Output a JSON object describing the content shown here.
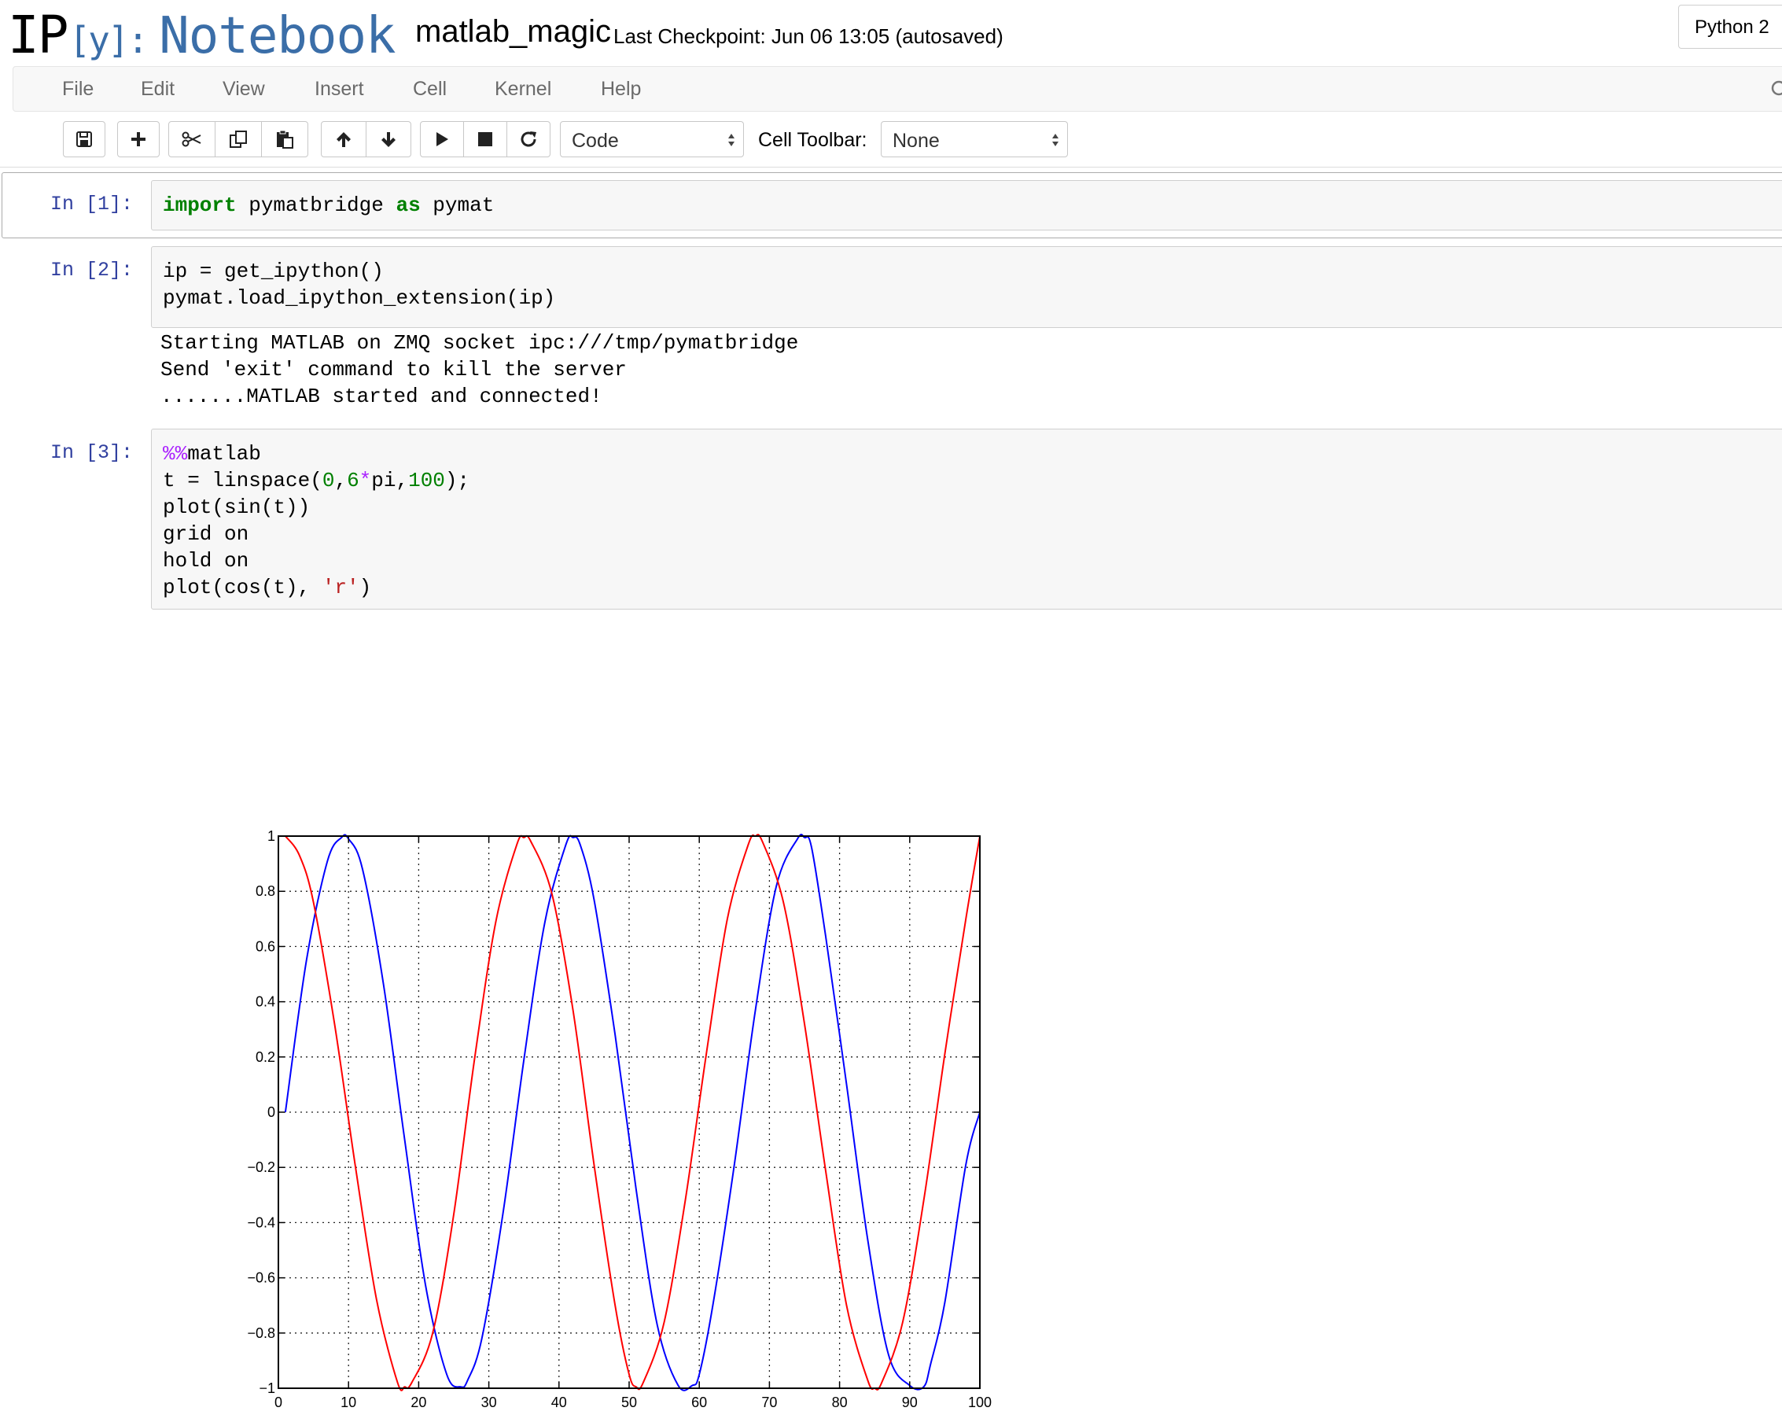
{
  "header": {
    "logo_ip": "IP",
    "logo_y": "[y]:",
    "logo_notebook": "Notebook",
    "notebook_name": "matlab_magic",
    "checkpoint": "Last Checkpoint: Jun 06 13:05 (autosaved)",
    "kernel": "Python 2"
  },
  "menu": {
    "items": [
      "File",
      "Edit",
      "View",
      "Insert",
      "Cell",
      "Kernel",
      "Help"
    ]
  },
  "toolbar": {
    "cell_type": "Code",
    "cell_toolbar_label": "Cell Toolbar:",
    "cell_toolbar_value": "None",
    "icons": [
      "save-icon",
      "plus-icon",
      "cut-icon",
      "copy-icon",
      "paste-icon",
      "arrow-up-icon",
      "arrow-down-icon",
      "play-icon",
      "stop-icon",
      "restart-icon"
    ]
  },
  "cells": [
    {
      "prompt": "In [1]:",
      "code": [
        "import pymatbridge as pymat"
      ]
    },
    {
      "prompt": "In [2]:",
      "code": [
        "ip = get_ipython()",
        "pymat.load_ipython_extension(ip)"
      ],
      "output": [
        "Starting MATLAB on ZMQ socket ipc:///tmp/pymatbridge",
        "Send 'exit' command to kill the server",
        ".......MATLAB started and connected!"
      ]
    },
    {
      "prompt": "In [3]:",
      "code": [
        "%%matlab",
        "t = linspace(0,6*pi,100);",
        "plot(sin(t))",
        "grid on",
        "hold on",
        "plot(cos(t), 'r')"
      ]
    }
  ],
  "chart_data": {
    "type": "line",
    "title": "",
    "xlabel": "",
    "ylabel": "",
    "xlim": [
      0,
      100
    ],
    "ylim": [
      -1,
      1
    ],
    "xticks": [
      0,
      10,
      20,
      30,
      40,
      50,
      60,
      70,
      80,
      90,
      100
    ],
    "yticks": [
      1,
      0.8,
      0.6,
      0.4,
      0.2,
      0,
      -0.2,
      -0.4,
      -0.6,
      -0.8,
      -1
    ],
    "yticklabels": [
      "1",
      "0.8",
      "0.6",
      "0.4",
      "0.2",
      "0",
      "−0.2",
      "−0.4",
      "−0.6",
      "−0.8",
      "−1"
    ],
    "grid": true,
    "series": [
      {
        "color": "#0000ff",
        "x": [
          1,
          4,
          7,
          9,
          10,
          12,
          15,
          18,
          21,
          24,
          26,
          27,
          29,
          32,
          35,
          38,
          41,
          42,
          43,
          45,
          48,
          51,
          54,
          57,
          59,
          60,
          62,
          65,
          68,
          71,
          74,
          75,
          76,
          78,
          81,
          84,
          87,
          90,
          92,
          93,
          95,
          98,
          100
        ],
        "y": [
          0,
          0.55,
          0.91,
          0.995,
          0.99,
          0.88,
          0.46,
          -0.1,
          -0.63,
          -0.95,
          -0.995,
          -0.97,
          -0.82,
          -0.37,
          0.19,
          0.69,
          0.97,
          0.995,
          0.97,
          0.77,
          0.28,
          -0.28,
          -0.77,
          -0.99,
          -0.99,
          -0.95,
          -0.69,
          -0.19,
          0.37,
          0.82,
          0.99,
          0.995,
          0.96,
          0.64,
          0.1,
          -0.46,
          -0.88,
          -0.99,
          -0.995,
          -0.91,
          -0.69,
          -0.19,
          0
        ]
      },
      {
        "color": "#ff0000",
        "x": [
          1,
          3,
          5,
          8,
          11,
          14,
          17,
          18,
          19,
          22,
          25,
          28,
          31,
          34,
          35,
          36,
          39,
          42,
          45,
          48,
          50,
          51,
          52,
          55,
          58,
          61,
          64,
          67,
          68,
          69,
          72,
          75,
          78,
          81,
          84,
          85,
          86,
          89,
          92,
          95,
          98,
          100
        ],
        "y": [
          1,
          0.93,
          0.76,
          0.32,
          -0.2,
          -0.68,
          -0.98,
          -0.995,
          -0.98,
          -0.8,
          -0.37,
          0.2,
          0.69,
          0.97,
          0.995,
          0.98,
          0.79,
          0.37,
          -0.19,
          -0.7,
          -0.95,
          -0.995,
          -0.98,
          -0.76,
          -0.32,
          0.21,
          0.7,
          0.97,
          1,
          0.98,
          0.76,
          0.32,
          -0.21,
          -0.7,
          -0.97,
          -1,
          -0.98,
          -0.76,
          -0.32,
          0.21,
          0.7,
          1
        ]
      }
    ]
  }
}
